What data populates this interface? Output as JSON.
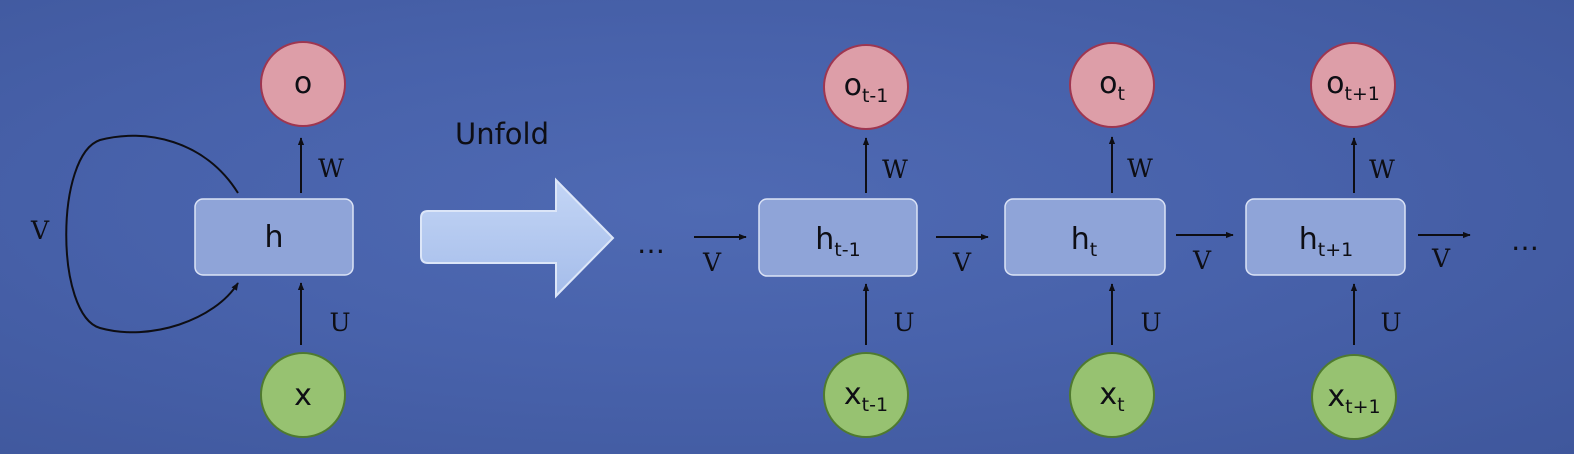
{
  "folded": {
    "output": "o",
    "hidden": "h",
    "input": "x",
    "w": "W",
    "u": "U",
    "v": "V"
  },
  "unfold_label": "Unfold",
  "unfolded": {
    "steps": [
      {
        "o_base": "o",
        "o_sub": "t-1",
        "h_base": "h",
        "h_sub": "t-1",
        "x_base": "x",
        "x_sub": "t-1"
      },
      {
        "o_base": "o",
        "o_sub": "t",
        "h_base": "h",
        "h_sub": "t",
        "x_base": "x",
        "x_sub": "t"
      },
      {
        "o_base": "o",
        "o_sub": "t+1",
        "h_base": "h",
        "h_sub": "t+1",
        "x_base": "x",
        "x_sub": "t+1"
      }
    ],
    "w": "W",
    "u": "U",
    "v": "V",
    "ellipsis": "…"
  },
  "colors": {
    "output_fill": "#dd9ea8",
    "output_stroke": "#9e3650",
    "input_fill": "#97c271",
    "input_stroke": "#4f7a2f",
    "hidden_fill": "#8fa4d8",
    "hidden_stroke": "#dbe3f6",
    "arrow_fill": "#b7ccf0"
  }
}
